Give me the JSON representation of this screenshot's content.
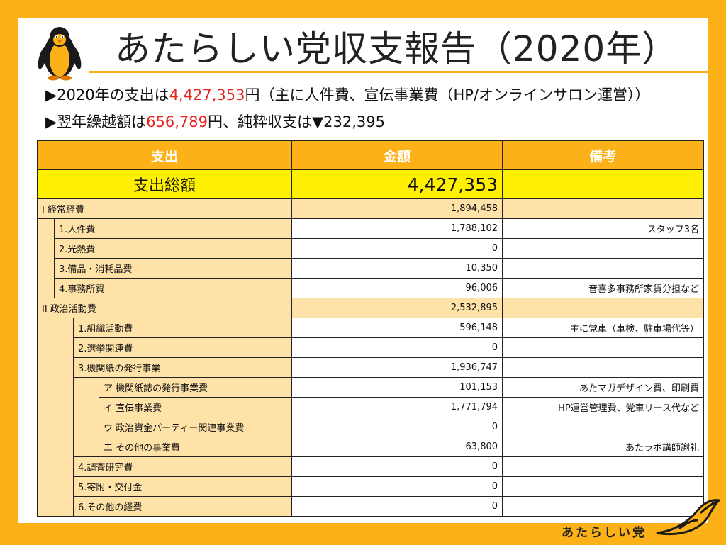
{
  "header": {
    "title": "あたらしい党収支報告（2020年）"
  },
  "summary": {
    "line1_prefix": "▶2020年の支出は",
    "line1_amount": "4,427,353",
    "line1_suffix": "円（主に人件費、宣伝事業費（HP/オンラインサロン運営））",
    "line2_prefix": "▶翌年繰越額は",
    "line2_amount": "656,789",
    "line2_suffix": "円、純粋収支は▼232,395"
  },
  "table": {
    "headers": [
      "支出",
      "金額",
      "備考"
    ],
    "total": {
      "label": "支出総額",
      "amount": "4,427,353"
    },
    "rows": [
      {
        "label": "I  経常経費",
        "amount": "1,894,458",
        "note": ""
      },
      {
        "label": "1.人件費",
        "amount": "1,788,102",
        "note": "スタッフ3名"
      },
      {
        "label": "2.光熱費",
        "amount": "0",
        "note": ""
      },
      {
        "label": "3.備品・消耗品費",
        "amount": "10,350",
        "note": ""
      },
      {
        "label": "4.事務所費",
        "amount": "96,006",
        "note": "音喜多事務所家賃分担など"
      },
      {
        "label": "II 政治活動費",
        "amount": "2,532,895",
        "note": ""
      },
      {
        "label": "1.組織活動費",
        "amount": "596,148",
        "note": "主に党車（車検、駐車場代等）"
      },
      {
        "label": "2.選挙関連費",
        "amount": "0",
        "note": ""
      },
      {
        "label": "3.機関紙の発行事業",
        "amount": "1,936,747",
        "note": ""
      },
      {
        "label": "ア 機関紙誌の発行事業費",
        "amount": "101,153",
        "note": "あたマガデザイン費、印刷費"
      },
      {
        "label": "イ 宣伝事業費",
        "amount": "1,771,794",
        "note": "HP運営管理費、党車リース代など"
      },
      {
        "label": "ウ 政治資金パーティー関連事業費",
        "amount": "0",
        "note": ""
      },
      {
        "label": "エ その他の事業費",
        "amount": "63,800",
        "note": "あたラボ講師謝礼"
      },
      {
        "label": "4.調査研究費",
        "amount": "0",
        "note": ""
      },
      {
        "label": "5.寄附・交付金",
        "amount": "0",
        "note": ""
      },
      {
        "label": "6.その他の経費",
        "amount": "0",
        "note": ""
      }
    ]
  },
  "brand": {
    "name": "あたらしい党"
  },
  "colors": {
    "accent": "#fbb117",
    "highlight": "#ffef00",
    "cell": "#ffe2a8",
    "red": "#e8231d"
  }
}
